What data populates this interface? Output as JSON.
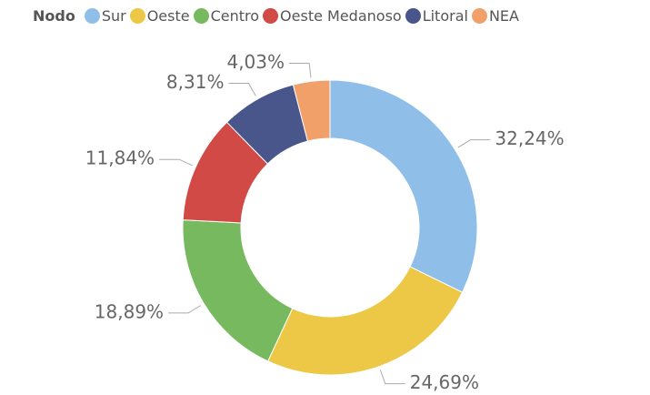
{
  "chart_data": {
    "type": "donut",
    "legend_title": "Nodo",
    "categories": [
      "Sur",
      "Oeste",
      "Centro",
      "Oeste Medanoso",
      "Litoral",
      "NEA"
    ],
    "values": [
      32.24,
      24.69,
      18.89,
      11.84,
      8.31,
      4.03
    ],
    "value_labels": [
      "32,24%",
      "24,69%",
      "18,89%",
      "11,84%",
      "8,31%",
      "4,03%"
    ],
    "colors": [
      "#8fbfe8",
      "#ecc846",
      "#76b95f",
      "#d14a45",
      "#48568c",
      "#f0a068"
    ]
  }
}
